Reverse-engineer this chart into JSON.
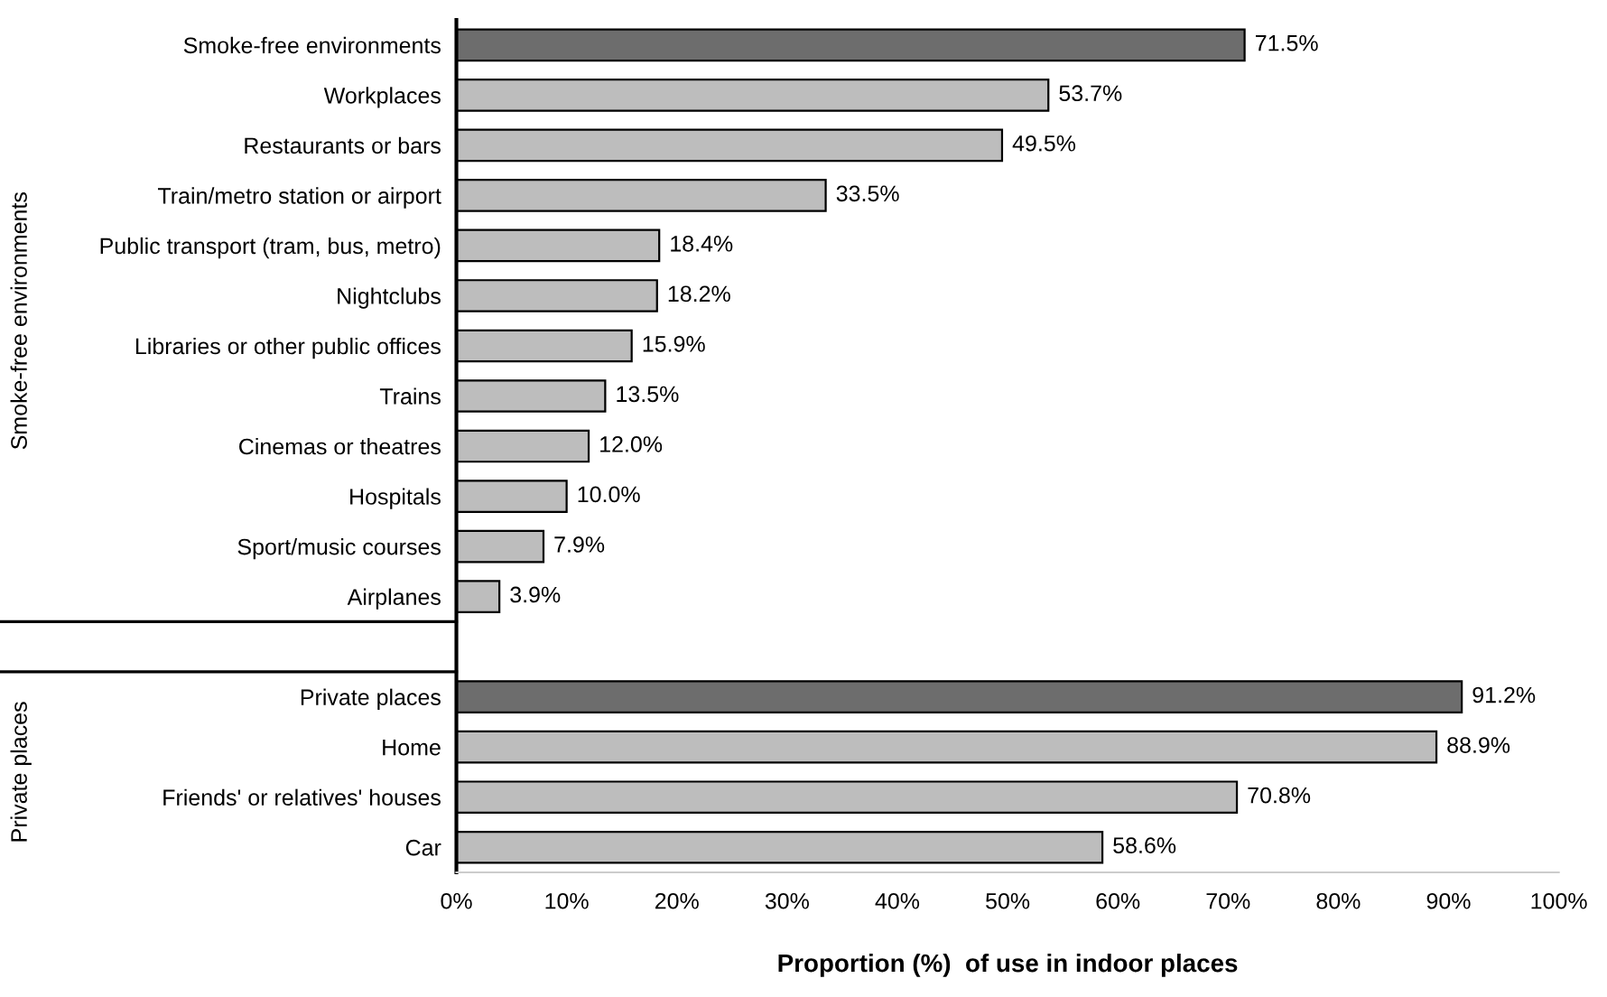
{
  "chart_data": {
    "type": "bar",
    "orientation": "horizontal",
    "xlabel": "Proportion (%)  of use in indoor places",
    "categories": [
      "Smoke-free environments",
      "Workplaces",
      "Restaurants or bars",
      "Train/metro station or airport",
      "Public transport (tram, bus, metro)",
      "Nightclubs",
      "Libraries or other public offices",
      "Trains",
      "Cinemas or theatres",
      "Hospitals",
      "Sport/music courses",
      "Airplanes",
      null,
      "Private places",
      "Home",
      "Friends' or relatives' houses",
      "Car"
    ],
    "values": [
      71.5,
      53.7,
      49.5,
      33.5,
      18.4,
      18.2,
      15.9,
      13.5,
      12.0,
      10.0,
      7.9,
      3.9,
      null,
      91.2,
      88.9,
      70.8,
      58.6
    ],
    "value_labels": [
      "71.5%",
      "53.7%",
      "49.5%",
      "33.5%",
      "18.4%",
      "18.2%",
      "15.9%",
      "13.5%",
      "12.0%",
      "10.0%",
      "7.9%",
      "3.9%",
      null,
      "91.2%",
      "88.9%",
      "70.8%",
      "58.6%"
    ],
    "colors": [
      "#6d6d6d",
      "#bdbdbd",
      "#bdbdbd",
      "#bdbdbd",
      "#bdbdbd",
      "#bdbdbd",
      "#bdbdbd",
      "#bdbdbd",
      "#bdbdbd",
      "#bdbdbd",
      "#bdbdbd",
      "#bdbdbd",
      null,
      "#6d6d6d",
      "#bdbdbd",
      "#bdbdbd",
      "#bdbdbd"
    ],
    "xlim": [
      0,
      100
    ],
    "xticks": [
      {
        "value": 0,
        "label": "0%"
      },
      {
        "value": 10,
        "label": "10%"
      },
      {
        "value": 20,
        "label": "20%"
      },
      {
        "value": 30,
        "label": "30%"
      },
      {
        "value": 40,
        "label": "40%"
      },
      {
        "value": 50,
        "label": "50%"
      },
      {
        "value": 60,
        "label": "60%"
      },
      {
        "value": 70,
        "label": "70%"
      },
      {
        "value": 80,
        "label": "80%"
      },
      {
        "value": 90,
        "label": "90%"
      },
      {
        "value": 100,
        "label": "100%"
      }
    ],
    "annotations": [
      "Smoke-free environments",
      "Private places"
    ],
    "grid": false
  }
}
